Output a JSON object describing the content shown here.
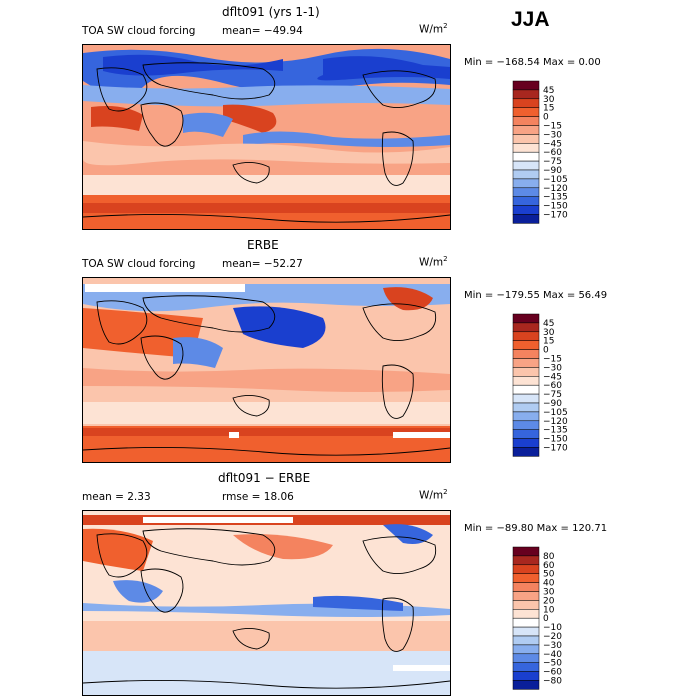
{
  "season": "JJA",
  "panels": [
    {
      "title": "dflt091 (yrs 1-1)",
      "left_text": "TOA SW cloud forcing",
      "stat_text": "mean= −49.94",
      "stat2_text": "",
      "units": "W/m",
      "units_sup": "2",
      "minmax": "Min = −168.54 Max =    0.00",
      "colorbar": {
        "levels": [
          "45",
          "30",
          "15",
          "0",
          "−15",
          "−30",
          "−45",
          "−60",
          "−75",
          "−90",
          "−105",
          "−120",
          "−135",
          "−150",
          "−170"
        ],
        "colors": [
          "#67001f",
          "#a8271f",
          "#d9431f",
          "#f0602e",
          "#f4835f",
          "#f8a385",
          "#fbc5ac",
          "#fde3d4",
          "#ffffff",
          "#d7e5f8",
          "#b0ccf2",
          "#88aeee",
          "#5d8ae6",
          "#3665dd",
          "#1a3fcf",
          "#0a1f9a"
        ]
      }
    },
    {
      "title": "ERBE",
      "left_text": "TOA SW cloud forcing",
      "stat_text": "mean= −52.27",
      "stat2_text": "",
      "units": "W/m",
      "units_sup": "2",
      "minmax": "Min = −179.55 Max =  56.49",
      "colorbar": {
        "levels": [
          "45",
          "30",
          "15",
          "0",
          "−15",
          "−30",
          "−45",
          "−60",
          "−75",
          "−90",
          "−105",
          "−120",
          "−135",
          "−150",
          "−170"
        ],
        "colors": [
          "#67001f",
          "#a8271f",
          "#d9431f",
          "#f0602e",
          "#f4835f",
          "#f8a385",
          "#fbc5ac",
          "#fde3d4",
          "#ffffff",
          "#d7e5f8",
          "#b0ccf2",
          "#88aeee",
          "#5d8ae6",
          "#3665dd",
          "#1a3fcf",
          "#0a1f9a"
        ]
      }
    },
    {
      "title": "dflt091 − ERBE",
      "left_text": "mean =    2.33",
      "stat_text": "rmse =   18.06",
      "stat2_text": "",
      "units": "W/m",
      "units_sup": "2",
      "minmax": "Min = −89.80 Max = 120.71",
      "colorbar": {
        "levels": [
          "80",
          "60",
          "50",
          "40",
          "30",
          "20",
          "10",
          "0",
          "−10",
          "−20",
          "−30",
          "−40",
          "−50",
          "−60",
          "−80"
        ],
        "colors": [
          "#67001f",
          "#a8271f",
          "#d9431f",
          "#f0602e",
          "#f4835f",
          "#f8a385",
          "#fbc5ac",
          "#fde3d4",
          "#ffffff",
          "#d7e5f8",
          "#b0ccf2",
          "#88aeee",
          "#5d8ae6",
          "#3665dd",
          "#1a3fcf",
          "#0a1f9a"
        ]
      }
    }
  ],
  "chart_data": [
    {
      "type": "heatmap",
      "title": "dflt091 (yrs 1-1)",
      "subtitle": "TOA SW cloud forcing",
      "mean": -49.94,
      "units": "W/m^2",
      "min": -168.54,
      "max": 0.0,
      "contour_levels": [
        45,
        30,
        15,
        0,
        -15,
        -30,
        -45,
        -60,
        -75,
        -90,
        -105,
        -120,
        -135,
        -150,
        -170
      ]
    },
    {
      "type": "heatmap",
      "title": "ERBE",
      "subtitle": "TOA SW cloud forcing",
      "mean": -52.27,
      "units": "W/m^2",
      "min": -179.55,
      "max": 56.49,
      "contour_levels": [
        45,
        30,
        15,
        0,
        -15,
        -30,
        -45,
        -60,
        -75,
        -90,
        -105,
        -120,
        -135,
        -150,
        -170
      ]
    },
    {
      "type": "heatmap",
      "title": "dflt091 - ERBE",
      "mean": 2.33,
      "rmse": 18.06,
      "units": "W/m^2",
      "min": -89.8,
      "max": 120.71,
      "contour_levels": [
        80,
        60,
        50,
        40,
        30,
        20,
        10,
        0,
        -10,
        -20,
        -30,
        -40,
        -50,
        -60,
        -80
      ]
    }
  ]
}
